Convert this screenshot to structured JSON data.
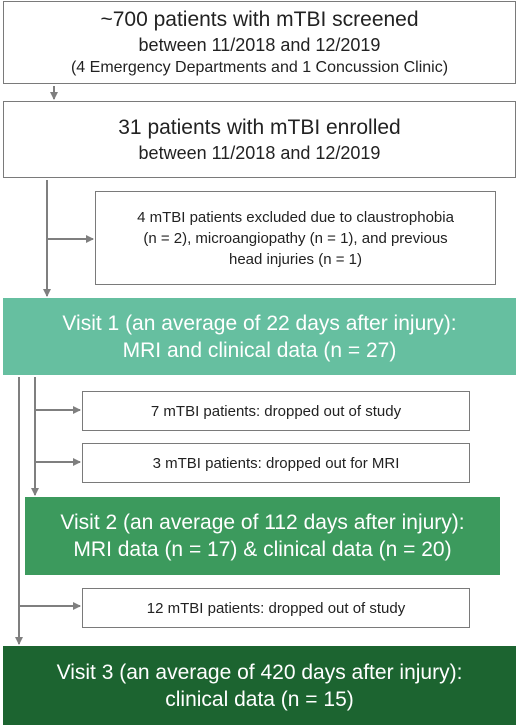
{
  "colors": {
    "visit1": "#66bfa0",
    "visit2": "#3c9a5d",
    "visit3": "#1c6430",
    "arrow": "#7f7f7f",
    "border": "#7a7a7a"
  },
  "screening": {
    "line1": "~700 patients with mTBI screened",
    "line2": "between 11/2018 and 12/2019",
    "line3": "(4 Emergency Departments and 1 Concussion Clinic)"
  },
  "enrolled": {
    "line1": "31 patients with mTBI enrolled",
    "line2": "between 11/2018 and 12/2019"
  },
  "excluded": {
    "line1": "4 mTBI patients excluded due to claustrophobia",
    "line2": "(n = 2), microangiopathy (n = 1), and previous",
    "line3": "head injuries (n = 1)"
  },
  "visit1": {
    "line1": "Visit 1 (an average of 22 days after injury):",
    "line2": "MRI and clinical data (n = 27)"
  },
  "dropout_study_1": "7 mTBI patients: dropped out of study",
  "dropout_mri": "3 mTBI patients: dropped out for MRI",
  "visit2": {
    "line1": "Visit 2 (an average of 112 days after injury):",
    "line2": "MRI data (n = 17) & clinical data (n = 20)"
  },
  "dropout_study_2": "12 mTBI patients: dropped out of study",
  "visit3": {
    "line1": "Visit 3 (an average of 420 days after injury):",
    "line2": "clinical data (n = 15)"
  }
}
